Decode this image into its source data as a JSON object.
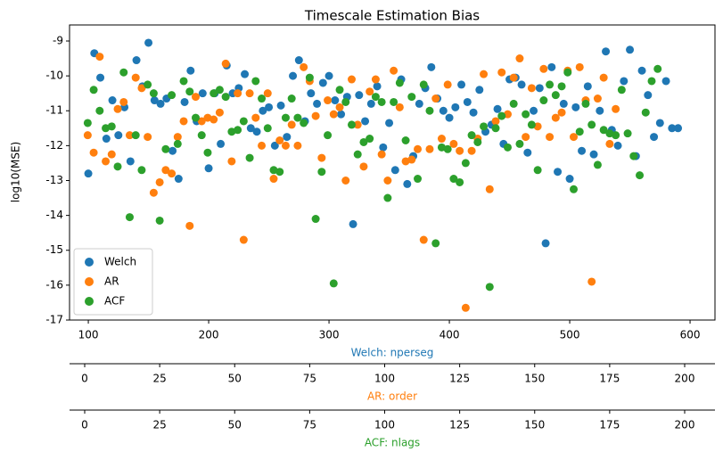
{
  "chart_data": {
    "type": "scatter",
    "title": "Timescale Estimation Bias",
    "ylabel": "log10(MSE)",
    "ylim": [
      -17.0,
      -8.54
    ],
    "yticks": [
      -17,
      -16,
      -15,
      -14,
      -13,
      -12,
      -11,
      -10,
      -9
    ],
    "legend": "lower left",
    "axes": [
      {
        "label": "Welch: nperseg",
        "color": "#1f77b4",
        "xlim": [
          84.4,
          620.7
        ],
        "xticks": [
          100,
          200,
          300,
          400,
          500,
          600
        ]
      },
      {
        "label": "AR: order",
        "color": "#ff7f0e",
        "xlim": [
          -5.05,
          210.1
        ],
        "xticks": [
          0,
          25,
          50,
          75,
          100,
          125,
          150,
          175,
          200
        ]
      },
      {
        "label": "ACF: nlags",
        "color": "#2ca02c",
        "xlim": [
          -5.05,
          210.1
        ],
        "xticks": [
          0,
          25,
          50,
          75,
          100,
          125,
          150,
          175,
          200
        ]
      }
    ],
    "series": [
      {
        "name": "Welch",
        "color": "#1f77b4",
        "xaxis": 0,
        "x": [
          100,
          105,
          110,
          115,
          120,
          125,
          130,
          135,
          140,
          145,
          150,
          155,
          160,
          165,
          170,
          175,
          180,
          185,
          190,
          195,
          200,
          205,
          210,
          215,
          220,
          225,
          230,
          235,
          240,
          245,
          250,
          255,
          260,
          265,
          270,
          275,
          280,
          285,
          290,
          295,
          300,
          305,
          310,
          315,
          320,
          325,
          330,
          335,
          340,
          345,
          350,
          355,
          360,
          365,
          370,
          375,
          380,
          385,
          390,
          395,
          400,
          405,
          410,
          415,
          420,
          425,
          430,
          435,
          440,
          445,
          450,
          455,
          460,
          465,
          470,
          475,
          480,
          485,
          490,
          495,
          500,
          505,
          510,
          515,
          520,
          525,
          530,
          535,
          540,
          545,
          550,
          555,
          560,
          565,
          570,
          575,
          580,
          585,
          590
        ],
        "values": [
          -12.8,
          -9.35,
          -10.05,
          -11.8,
          -10.7,
          -11.7,
          -10.9,
          -12.45,
          -9.55,
          -10.3,
          -9.05,
          -10.7,
          -10.8,
          -10.65,
          -12.15,
          -12.95,
          -10.75,
          -9.85,
          -11.3,
          -10.5,
          -12.65,
          -10.5,
          -11.95,
          -9.7,
          -10.5,
          -10.35,
          -9.95,
          -11.5,
          -11.6,
          -11.0,
          -10.9,
          -12.0,
          -10.85,
          -11.75,
          -10.0,
          -9.55,
          -11.3,
          -10.5,
          -10.8,
          -10.2,
          -10.0,
          -10.7,
          -11.1,
          -10.6,
          -14.25,
          -10.55,
          -11.3,
          -10.8,
          -10.3,
          -12.05,
          -11.35,
          -12.7,
          -10.1,
          -13.1,
          -12.3,
          -10.8,
          -10.35,
          -9.75,
          -10.65,
          -11.0,
          -11.2,
          -10.9,
          -10.25,
          -10.75,
          -11.05,
          -10.4,
          -11.6,
          -11.4,
          -10.95,
          -11.95,
          -10.1,
          -10.05,
          -10.25,
          -12.2,
          -11.0,
          -10.35,
          -14.8,
          -9.75,
          -12.75,
          -10.8,
          -12.95,
          -10.9,
          -12.15,
          -10.3,
          -12.25,
          -11.0,
          -9.3,
          -11.55,
          -12.0,
          -10.15,
          -9.25,
          -12.3,
          -9.85,
          -10.55,
          -11.75,
          -11.35,
          -10.15,
          -11.5,
          -11.5
        ]
      },
      {
        "name": "AR",
        "color": "#ff7f0e",
        "xaxis": 1,
        "x": [
          1,
          3,
          5,
          7,
          9,
          11,
          13,
          15,
          17,
          19,
          21,
          23,
          25,
          27,
          29,
          31,
          33,
          35,
          37,
          39,
          41,
          43,
          45,
          47,
          49,
          51,
          53,
          55,
          57,
          59,
          61,
          63,
          65,
          67,
          69,
          71,
          73,
          75,
          77,
          79,
          81,
          83,
          85,
          87,
          89,
          91,
          93,
          95,
          97,
          99,
          101,
          103,
          105,
          107,
          109,
          111,
          113,
          115,
          117,
          119,
          121,
          123,
          125,
          127,
          129,
          131,
          133,
          135,
          137,
          139,
          141,
          143,
          145,
          147,
          149,
          151,
          153,
          155,
          157,
          159,
          161,
          163,
          165,
          167,
          169,
          171,
          173,
          175,
          177
        ],
        "values": [
          -11.7,
          -12.2,
          -9.45,
          -12.45,
          -12.25,
          -10.95,
          -10.75,
          -11.7,
          -10.05,
          -10.35,
          -11.75,
          -13.35,
          -13.05,
          -12.7,
          -12.8,
          -11.75,
          -11.3,
          -14.3,
          -10.6,
          -11.3,
          -11.2,
          -11.25,
          -11.05,
          -9.65,
          -12.45,
          -10.5,
          -14.7,
          -10.5,
          -11.2,
          -12.0,
          -10.5,
          -12.95,
          -11.85,
          -12.0,
          -11.4,
          -12.0,
          -9.75,
          -10.15,
          -11.15,
          -12.35,
          -10.7,
          -11.1,
          -10.9,
          -13.0,
          -10.1,
          -11.4,
          -12.6,
          -10.45,
          -10.1,
          -12.25,
          -13.0,
          -9.85,
          -10.9,
          -12.45,
          -12.4,
          -12.1,
          -14.7,
          -12.1,
          -10.65,
          -11.8,
          -10.25,
          -11.95,
          -12.15,
          -16.65,
          -12.15,
          -11.8,
          -9.95,
          -13.25,
          -11.3,
          -9.9,
          -11.1,
          -10.05,
          -9.5,
          -11.75,
          -10.35,
          -11.45,
          -9.8,
          -11.75,
          -11.2,
          -11.05,
          -9.85,
          -11.75,
          -9.75,
          -10.7,
          -15.9,
          -10.65,
          -10.05,
          -11.95,
          -10.95
        ]
      },
      {
        "name": "ACF",
        "color": "#2ca02c",
        "xaxis": 2,
        "x": [
          1,
          3,
          5,
          7,
          9,
          11,
          13,
          15,
          17,
          19,
          21,
          23,
          25,
          27,
          29,
          31,
          33,
          35,
          37,
          39,
          41,
          43,
          45,
          47,
          49,
          51,
          53,
          55,
          57,
          59,
          61,
          63,
          65,
          67,
          69,
          71,
          73,
          75,
          77,
          79,
          81,
          83,
          85,
          87,
          89,
          91,
          93,
          95,
          97,
          99,
          101,
          103,
          105,
          107,
          109,
          111,
          113,
          115,
          117,
          119,
          121,
          123,
          125,
          127,
          129,
          131,
          133,
          135,
          137,
          139,
          141,
          143,
          145,
          147,
          149,
          151,
          153,
          155,
          157,
          159,
          161,
          163,
          165,
          167,
          169,
          171,
          173,
          175,
          177,
          179,
          181,
          183,
          185,
          187,
          189,
          191
        ],
        "values": [
          -11.35,
          -10.4,
          -11.0,
          -11.5,
          -11.45,
          -12.6,
          -9.9,
          -14.05,
          -11.7,
          -12.7,
          -10.25,
          -10.5,
          -14.15,
          -12.1,
          -10.55,
          -11.95,
          -10.15,
          -10.45,
          -11.2,
          -11.7,
          -12.2,
          -10.5,
          -10.4,
          -10.6,
          -11.6,
          -11.55,
          -11.3,
          -12.35,
          -10.15,
          -10.65,
          -11.5,
          -12.7,
          -12.75,
          -11.2,
          -10.65,
          -11.2,
          -11.35,
          -10.05,
          -14.1,
          -12.75,
          -11.7,
          -15.95,
          -10.4,
          -10.75,
          -11.4,
          -12.25,
          -11.9,
          -11.8,
          -10.6,
          -10.75,
          -13.5,
          -10.75,
          -10.2,
          -11.85,
          -10.6,
          -12.95,
          -10.25,
          -11.0,
          -14.8,
          -12.05,
          -12.1,
          -12.95,
          -13.05,
          -12.5,
          -11.7,
          -11.9,
          -11.45,
          -16.05,
          -11.5,
          -11.15,
          -12.05,
          -10.8,
          -11.95,
          -11.1,
          -11.4,
          -12.7,
          -10.7,
          -10.25,
          -10.55,
          -10.3,
          -9.9,
          -13.25,
          -11.6,
          -10.8,
          -11.4,
          -12.55,
          -11.55,
          -11.65,
          -11.7,
          -10.4,
          -11.65,
          -12.3,
          -12.85,
          -11.05,
          -10.15,
          -9.8
        ]
      }
    ]
  }
}
